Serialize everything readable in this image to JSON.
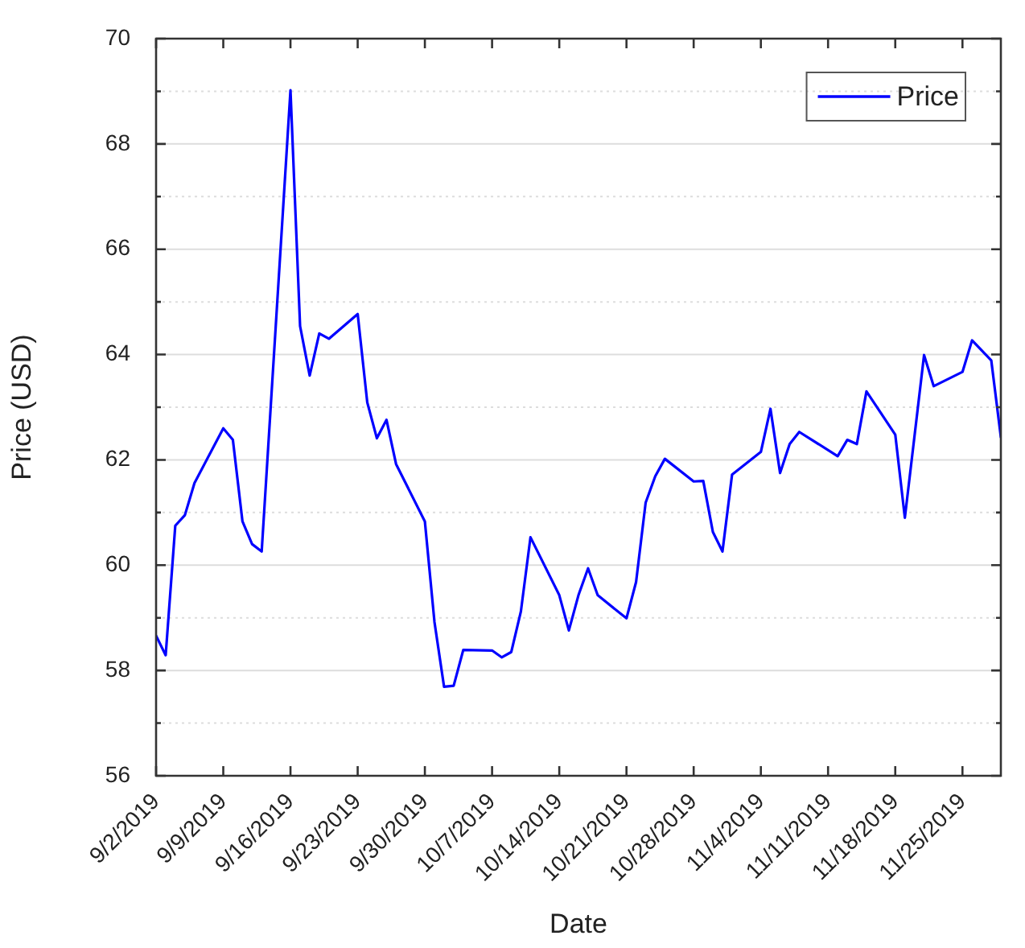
{
  "chart_data": {
    "type": "line",
    "xlabel": "Date",
    "ylabel": "Price (USD)",
    "x": [
      "2019-09-02",
      "2019-09-03",
      "2019-09-04",
      "2019-09-05",
      "2019-09-06",
      "2019-09-09",
      "2019-09-10",
      "2019-09-11",
      "2019-09-12",
      "2019-09-13",
      "2019-09-16",
      "2019-09-17",
      "2019-09-18",
      "2019-09-19",
      "2019-09-20",
      "2019-09-23",
      "2019-09-24",
      "2019-09-25",
      "2019-09-26",
      "2019-09-27",
      "2019-09-30",
      "2019-10-01",
      "2019-10-02",
      "2019-10-03",
      "2019-10-04",
      "2019-10-07",
      "2019-10-08",
      "2019-10-09",
      "2019-10-10",
      "2019-10-11",
      "2019-10-14",
      "2019-10-15",
      "2019-10-16",
      "2019-10-17",
      "2019-10-18",
      "2019-10-21",
      "2019-10-22",
      "2019-10-23",
      "2019-10-24",
      "2019-10-25",
      "2019-10-28",
      "2019-10-29",
      "2019-10-30",
      "2019-10-31",
      "2019-11-01",
      "2019-11-04",
      "2019-11-05",
      "2019-11-06",
      "2019-11-07",
      "2019-11-08",
      "2019-11-12",
      "2019-11-13",
      "2019-11-14",
      "2019-11-15",
      "2019-11-18",
      "2019-11-19",
      "2019-11-21",
      "2019-11-22",
      "2019-11-25",
      "2019-11-26",
      "2019-11-28",
      "2019-11-29"
    ],
    "series": [
      {
        "name": "Price",
        "color": "#0000ff",
        "values": [
          58.66,
          58.29,
          60.75,
          60.95,
          61.56,
          62.6,
          62.38,
          60.83,
          60.4,
          60.26,
          69.02,
          64.54,
          63.6,
          64.4,
          64.3,
          64.77,
          63.09,
          62.41,
          62.76,
          61.92,
          60.83,
          58.92,
          57.69,
          57.71,
          58.39,
          58.38,
          58.25,
          58.35,
          59.12,
          60.53,
          59.43,
          58.76,
          59.43,
          59.94,
          59.43,
          58.99,
          59.68,
          61.19,
          61.69,
          62.02,
          61.59,
          61.6,
          60.63,
          60.26,
          61.72,
          62.15,
          62.97,
          61.75,
          62.3,
          62.53,
          62.07,
          62.38,
          62.3,
          63.3,
          62.48,
          60.9,
          63.99,
          63.4,
          63.67,
          64.27,
          63.89,
          62.43
        ]
      }
    ],
    "xlim": [
      "2019-09-02",
      "2019-11-29"
    ],
    "xticks": [
      {
        "value": "2019-09-02",
        "label": "9/2/2019"
      },
      {
        "value": "2019-09-09",
        "label": "9/9/2019"
      },
      {
        "value": "2019-09-16",
        "label": "9/16/2019"
      },
      {
        "value": "2019-09-23",
        "label": "9/23/2019"
      },
      {
        "value": "2019-09-30",
        "label": "9/30/2019"
      },
      {
        "value": "2019-10-07",
        "label": "10/7/2019"
      },
      {
        "value": "2019-10-14",
        "label": "10/14/2019"
      },
      {
        "value": "2019-10-21",
        "label": "10/21/2019"
      },
      {
        "value": "2019-10-28",
        "label": "10/28/2019"
      },
      {
        "value": "2019-11-04",
        "label": "11/4/2019"
      },
      {
        "value": "2019-11-11",
        "label": "11/11/2019"
      },
      {
        "value": "2019-11-18",
        "label": "11/18/2019"
      },
      {
        "value": "2019-11-25",
        "label": "11/25/2019"
      }
    ],
    "ylim": [
      56,
      70
    ],
    "yticks": [
      56,
      {
        "value": 57,
        "label": null
      },
      58,
      {
        "value": 59,
        "label": null
      },
      60,
      {
        "value": 61,
        "label": null
      },
      62,
      {
        "value": 63,
        "label": null
      },
      64,
      {
        "value": 65,
        "label": null
      },
      66,
      {
        "value": 67,
        "label": null
      },
      68,
      {
        "value": 69,
        "label": null
      },
      70
    ],
    "grid": "y",
    "legend": "top right",
    "marker": "none",
    "line_style": "solid"
  }
}
